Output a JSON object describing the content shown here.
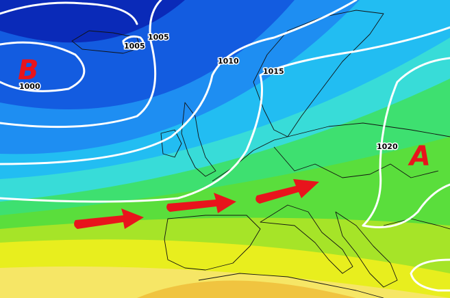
{
  "pressure_centers": [
    {
      "label": "B"
    },
    {
      "label": "A"
    }
  ],
  "isobar_labels": [
    1000,
    1005,
    1005,
    1010,
    1015,
    1020
  ]
}
